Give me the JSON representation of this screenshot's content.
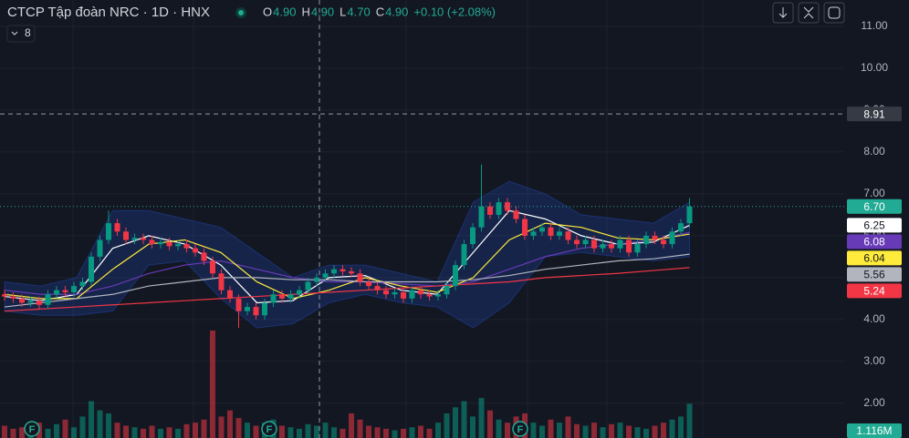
{
  "chart_data": {
    "type": "candlestick",
    "title": "CTCP Tập đoàn NRC · 1D · HNX",
    "header_values": [
      {
        "key": "O",
        "value": 4.9,
        "label": "4.90"
      },
      {
        "key": "H",
        "value": 4.9,
        "label": "4.90"
      },
      {
        "key": "L",
        "value": 4.7,
        "label": "4.70"
      },
      {
        "key": "C",
        "value": 4.9,
        "label": "4.90"
      }
    ],
    "change": "+0.10 (+2.08%)",
    "indicator_count": 8,
    "up_color": "#089981",
    "down_color": "#f23645",
    "open": [
      4.6,
      4.55,
      4.5,
      4.4,
      4.45,
      4.35,
      4.6,
      4.7,
      4.65,
      4.8,
      4.9,
      5.5,
      5.9,
      6.3,
      6.1,
      5.9,
      5.95,
      5.9,
      5.8,
      5.85,
      5.75,
      5.8,
      5.7,
      5.6,
      5.4,
      5.1,
      4.7,
      4.5,
      4.2,
      4.3,
      4.1,
      4.4,
      4.6,
      4.5,
      4.6,
      4.7,
      4.9,
      5.0,
      5.1,
      5.2,
      5.15,
      5.1,
      4.9,
      4.8,
      4.7,
      4.6,
      4.65,
      4.5,
      4.7,
      4.6,
      4.55,
      4.6,
      4.8,
      5.3,
      5.8,
      6.2,
      6.7,
      6.5,
      6.8,
      6.6,
      6.4,
      6.0,
      6.1,
      6.2,
      6.0,
      6.1,
      5.9,
      5.8,
      5.9,
      5.7,
      5.8,
      5.7,
      5.9,
      5.6,
      5.8,
      6.0,
      5.9,
      5.8,
      6.1,
      6.3
    ],
    "high": [
      4.7,
      4.65,
      4.6,
      4.55,
      4.55,
      4.7,
      4.8,
      4.8,
      4.9,
      5.0,
      5.6,
      6.0,
      6.6,
      6.4,
      6.2,
      6.05,
      6.05,
      6.0,
      5.95,
      5.95,
      5.9,
      5.9,
      5.8,
      5.7,
      5.5,
      5.2,
      4.8,
      4.6,
      4.4,
      4.4,
      4.5,
      4.7,
      4.7,
      4.7,
      4.8,
      5.0,
      5.1,
      5.2,
      5.3,
      5.3,
      5.25,
      5.2,
      5.0,
      4.9,
      4.8,
      4.75,
      4.75,
      4.8,
      4.8,
      4.7,
      4.7,
      4.9,
      5.4,
      5.9,
      6.3,
      7.7,
      6.8,
      6.9,
      6.9,
      6.7,
      6.5,
      6.2,
      6.3,
      6.3,
      6.2,
      6.2,
      6.0,
      6.0,
      6.0,
      5.9,
      5.9,
      6.0,
      6.0,
      5.9,
      6.1,
      6.1,
      6.0,
      6.2,
      6.4,
      6.9
    ],
    "low": [
      4.45,
      4.4,
      4.3,
      4.3,
      4.25,
      4.25,
      4.5,
      4.55,
      4.55,
      4.7,
      4.8,
      5.4,
      5.8,
      6.0,
      5.8,
      5.8,
      5.8,
      5.7,
      5.7,
      5.65,
      5.65,
      5.6,
      5.5,
      5.3,
      5.0,
      4.6,
      4.4,
      3.8,
      4.1,
      4.0,
      4.0,
      4.3,
      4.4,
      4.4,
      4.5,
      4.6,
      4.8,
      4.9,
      5.0,
      5.05,
      5.0,
      4.8,
      4.7,
      4.6,
      4.5,
      4.5,
      4.4,
      4.4,
      4.5,
      4.45,
      4.45,
      4.5,
      4.7,
      5.2,
      5.7,
      6.1,
      6.4,
      6.4,
      6.5,
      6.3,
      5.9,
      5.9,
      6.0,
      5.9,
      5.9,
      5.8,
      5.7,
      5.7,
      5.6,
      5.6,
      5.6,
      5.6,
      5.5,
      5.5,
      5.7,
      5.8,
      5.7,
      5.7,
      6.0,
      6.2
    ],
    "close": [
      4.55,
      4.5,
      4.4,
      4.45,
      4.35,
      4.6,
      4.7,
      4.65,
      4.8,
      4.9,
      5.5,
      5.9,
      6.3,
      6.1,
      5.9,
      5.95,
      5.9,
      5.8,
      5.85,
      5.75,
      5.8,
      5.7,
      5.6,
      5.4,
      5.1,
      4.7,
      4.5,
      4.2,
      4.3,
      4.1,
      4.4,
      4.6,
      4.5,
      4.6,
      4.7,
      4.9,
      5.0,
      5.1,
      5.2,
      5.15,
      5.1,
      4.9,
      4.8,
      4.7,
      4.6,
      4.65,
      4.5,
      4.7,
      4.6,
      4.55,
      4.6,
      4.8,
      5.3,
      5.8,
      6.2,
      6.7,
      6.5,
      6.8,
      6.6,
      6.4,
      6.0,
      6.1,
      6.2,
      6.0,
      6.1,
      5.9,
      5.8,
      5.9,
      5.7,
      5.8,
      5.7,
      5.9,
      5.6,
      5.8,
      6.0,
      5.9,
      5.8,
      6.1,
      6.3,
      6.7
    ],
    "volume": [
      400000,
      300000,
      350000,
      250000,
      500000,
      300000,
      450000,
      600000,
      350000,
      700000,
      1200000,
      900000,
      800000,
      500000,
      400000,
      350000,
      300000,
      400000,
      300000,
      350000,
      300000,
      450000,
      500000,
      600000,
      3500000,
      700000,
      900000,
      650000,
      500000,
      400000,
      500000,
      600000,
      400000,
      350000,
      300000,
      450000,
      400000,
      500000,
      350000,
      300000,
      800000,
      600000,
      400000,
      350000,
      300000,
      250000,
      300000,
      350000,
      400000,
      300000,
      500000,
      800000,
      1000000,
      1200000,
      700000,
      1300000,
      900000,
      600000,
      500000,
      700000,
      800000,
      500000,
      400000,
      600000,
      500000,
      700000,
      450000,
      400000,
      500000,
      350000,
      450000,
      500000,
      400000,
      350000,
      300000,
      400000,
      500000,
      600000,
      700000,
      1116000
    ],
    "volume_last_label": "1.116M",
    "last_price": {
      "value": 6.7,
      "label": "6.70"
    },
    "crosshair_price": {
      "value": 8.91,
      "label": "8.91"
    },
    "band": {
      "color": "#2962ff",
      "upper": [
        4.9,
        4.8,
        5.0,
        6.6,
        6.6,
        6.4,
        6.2,
        5.6,
        5.0,
        5.3,
        5.3,
        5.1,
        4.9,
        6.8,
        7.3,
        7.0,
        6.5,
        6.4,
        6.3,
        6.8
      ],
      "lower": [
        4.2,
        4.1,
        4.1,
        4.2,
        5.3,
        5.4,
        4.5,
        3.8,
        3.9,
        4.4,
        4.6,
        4.4,
        4.3,
        3.8,
        4.4,
        5.5,
        5.6,
        5.5,
        5.4,
        5.5
      ]
    },
    "series": [
      {
        "color": "#ffffff",
        "text_color": "#131722",
        "end_label": "6.25",
        "values": [
          4.55,
          4.45,
          4.6,
          5.7,
          6.0,
          5.8,
          5.3,
          4.4,
          4.45,
          5.0,
          5.05,
          4.7,
          4.6,
          5.6,
          6.6,
          6.4,
          6.0,
          5.8,
          5.85,
          6.25
        ]
      },
      {
        "color": "#673ab7",
        "text_color": "#ffffff",
        "end_label": "6.08",
        "values": [
          4.7,
          4.6,
          4.6,
          4.8,
          5.1,
          5.3,
          5.4,
          5.2,
          5.0,
          4.9,
          4.9,
          4.85,
          4.8,
          4.9,
          5.2,
          5.5,
          5.7,
          5.8,
          5.9,
          6.08
        ]
      },
      {
        "color": "#ffeb3b",
        "text_color": "#131722",
        "end_label": "6.04",
        "values": [
          4.6,
          4.5,
          4.5,
          5.2,
          5.8,
          5.9,
          5.6,
          4.9,
          4.5,
          4.7,
          5.0,
          4.8,
          4.65,
          5.0,
          5.9,
          6.3,
          6.2,
          5.95,
          5.9,
          6.04
        ]
      },
      {
        "color": "#b2b5be",
        "text_color": "#131722",
        "end_label": "5.56",
        "values": [
          4.3,
          4.4,
          4.5,
          4.6,
          4.8,
          4.9,
          5.0,
          5.0,
          4.95,
          4.95,
          4.9,
          4.9,
          4.9,
          4.95,
          5.05,
          5.2,
          5.3,
          5.4,
          5.45,
          5.56
        ]
      },
      {
        "color": "#f23645",
        "text_color": "#ffffff",
        "end_label": "5.24",
        "values": [
          4.2,
          4.25,
          4.3,
          4.35,
          4.4,
          4.45,
          4.5,
          4.55,
          4.6,
          4.65,
          4.7,
          4.75,
          4.8,
          4.85,
          4.9,
          5.0,
          5.05,
          5.1,
          5.17,
          5.24
        ]
      }
    ],
    "events": [
      "F",
      "F",
      "F"
    ],
    "ylim": [
      1.17,
      11.63
    ],
    "yticks": [
      {
        "value": 2,
        "label": "2.00"
      },
      {
        "value": 3,
        "label": "3.00"
      },
      {
        "value": 4,
        "label": "4.00"
      },
      {
        "value": 5,
        "label": "5.00"
      },
      {
        "value": 6,
        "label": "6.00"
      },
      {
        "value": 7,
        "label": "7.00"
      },
      {
        "value": 8,
        "label": "8.00"
      },
      {
        "value": 9,
        "label": "9.00"
      },
      {
        "value": 10,
        "label": "10.00"
      },
      {
        "value": 11,
        "label": "11.00"
      }
    ],
    "grid": true
  }
}
